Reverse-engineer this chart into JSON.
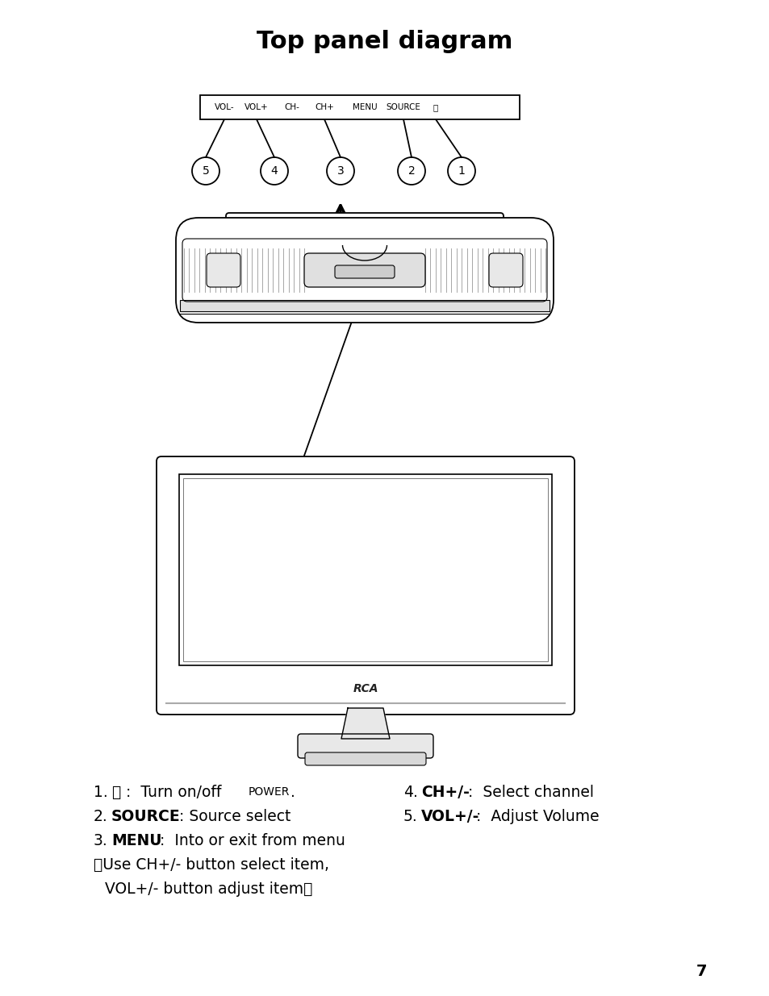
{
  "title": "Top panel diagram",
  "title_fontsize": 22,
  "title_fontweight": "bold",
  "background_color": "#ffffff",
  "button_labels": [
    "VOL-",
    "VOL+",
    "CH-",
    "CH+",
    "MENU",
    "SOURCE"
  ],
  "page_number": "7"
}
